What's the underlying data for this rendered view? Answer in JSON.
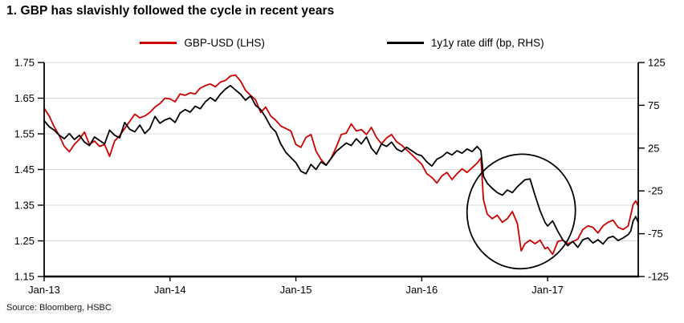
{
  "page": {
    "source": "Source: Bloomberg, HSBC"
  },
  "chart_data": {
    "type": "line",
    "title": "1. GBP has slavishly followed the cycle in recent years",
    "grid": "horizontal-light-gray",
    "grid_color": "#d9d9d9",
    "legend_position": "top-center",
    "legend": [
      {
        "id": "gbp-usd",
        "label": "GBP-USD (LHS)",
        "color": "#cc0000"
      },
      {
        "id": "rate-diff",
        "label": "1y1y rate diff (bp, RHS)",
        "color": "#000000"
      }
    ],
    "x_axis": {
      "range": [
        2013.0,
        2017.72
      ],
      "ticks": [
        {
          "value": 2013,
          "label": "Jan-13"
        },
        {
          "value": 2014,
          "label": "Jan-14"
        },
        {
          "value": 2015,
          "label": "Jan-15"
        },
        {
          "value": 2016,
          "label": "Jan-16"
        },
        {
          "value": 2017,
          "label": "Jan-17"
        }
      ]
    },
    "left_axis": {
      "series": "GBP-USD",
      "range": [
        1.15,
        1.75
      ],
      "ticks": [
        "1.75",
        "1.65",
        "1.55",
        "1.45",
        "1.35",
        "1.25",
        "1.15"
      ]
    },
    "right_axis": {
      "series": "1y1y rate diff (bp)",
      "range": [
        -125,
        125
      ],
      "ticks": [
        "125",
        "75",
        "25",
        "-25",
        "-75",
        "-125"
      ]
    },
    "x": [
      2013.0,
      2013.04,
      2013.08,
      2013.12,
      2013.16,
      2013.2,
      2013.24,
      2013.28,
      2013.32,
      2013.36,
      2013.4,
      2013.44,
      2013.48,
      2013.52,
      2013.56,
      2013.6,
      2013.64,
      2013.68,
      2013.72,
      2013.76,
      2013.8,
      2013.84,
      2013.88,
      2013.92,
      2013.96,
      2014.0,
      2014.04,
      2014.08,
      2014.12,
      2014.16,
      2014.2,
      2014.24,
      2014.28,
      2014.32,
      2014.36,
      2014.4,
      2014.44,
      2014.48,
      2014.52,
      2014.56,
      2014.6,
      2014.64,
      2014.68,
      2014.72,
      2014.76,
      2014.8,
      2014.84,
      2014.88,
      2014.92,
      2014.96,
      2015.0,
      2015.04,
      2015.08,
      2015.12,
      2015.16,
      2015.2,
      2015.24,
      2015.28,
      2015.32,
      2015.36,
      2015.4,
      2015.44,
      2015.48,
      2015.52,
      2015.56,
      2015.6,
      2015.64,
      2015.68,
      2015.72,
      2015.76,
      2015.8,
      2015.84,
      2015.88,
      2015.92,
      2015.96,
      2016.0,
      2016.04,
      2016.08,
      2016.12,
      2016.16,
      2016.2,
      2016.24,
      2016.28,
      2016.32,
      2016.36,
      2016.4,
      2016.44,
      2016.47,
      2016.49,
      2016.52,
      2016.56,
      2016.6,
      2016.64,
      2016.68,
      2016.72,
      2016.76,
      2016.79,
      2016.82,
      2016.86,
      2016.9,
      2016.94,
      2016.98,
      2017.0,
      2017.04,
      2017.08,
      2017.12,
      2017.16,
      2017.2,
      2017.24,
      2017.28,
      2017.32,
      2017.36,
      2017.4,
      2017.44,
      2017.48,
      2017.52,
      2017.56,
      2017.6,
      2017.64,
      2017.66,
      2017.68,
      2017.7,
      2017.72
    ],
    "series": [
      {
        "id": "gbp-usd",
        "name": "GBP-USD (LHS)",
        "axis": "left",
        "color": "#cc0000",
        "values": [
          1.622,
          1.6,
          1.57,
          1.545,
          1.515,
          1.5,
          1.52,
          1.535,
          1.555,
          1.52,
          1.53,
          1.515,
          1.52,
          1.487,
          1.53,
          1.545,
          1.565,
          1.585,
          1.605,
          1.595,
          1.6,
          1.61,
          1.625,
          1.635,
          1.65,
          1.648,
          1.64,
          1.662,
          1.658,
          1.665,
          1.662,
          1.678,
          1.685,
          1.69,
          1.682,
          1.695,
          1.7,
          1.712,
          1.715,
          1.698,
          1.672,
          1.658,
          1.645,
          1.61,
          1.625,
          1.6,
          1.588,
          1.572,
          1.565,
          1.558,
          1.52,
          1.512,
          1.54,
          1.548,
          1.502,
          1.478,
          1.462,
          1.482,
          1.512,
          1.548,
          1.552,
          1.578,
          1.558,
          1.562,
          1.548,
          1.568,
          1.54,
          1.522,
          1.538,
          1.548,
          1.528,
          1.518,
          1.505,
          1.492,
          1.478,
          1.465,
          1.438,
          1.428,
          1.412,
          1.432,
          1.442,
          1.422,
          1.438,
          1.452,
          1.442,
          1.455,
          1.468,
          1.482,
          1.365,
          1.325,
          1.312,
          1.322,
          1.302,
          1.312,
          1.332,
          1.298,
          1.222,
          1.242,
          1.252,
          1.242,
          1.252,
          1.228,
          1.232,
          1.212,
          1.248,
          1.252,
          1.242,
          1.248,
          1.255,
          1.282,
          1.292,
          1.288,
          1.272,
          1.292,
          1.302,
          1.308,
          1.288,
          1.282,
          1.292,
          1.322,
          1.352,
          1.362,
          1.348
        ]
      },
      {
        "id": "rate-diff",
        "name": "1y1y rate diff (bp, RHS)",
        "axis": "right",
        "color": "#000000",
        "values": [
          57,
          50,
          46,
          40,
          36,
          42,
          35,
          40,
          32,
          28,
          38,
          34,
          30,
          46,
          40,
          37,
          55,
          47,
          44,
          52,
          42,
          48,
          62,
          54,
          58,
          60,
          55,
          66,
          70,
          67,
          74,
          71,
          79,
          84,
          80,
          88,
          94,
          98,
          93,
          88,
          81,
          86,
          75,
          70,
          61,
          50,
          44,
          30,
          20,
          14,
          8,
          -2,
          -5,
          6,
          0,
          9,
          5,
          13,
          21,
          26,
          31,
          28,
          36,
          30,
          38,
          25,
          18,
          30,
          27,
          32,
          24,
          21,
          26,
          22,
          18,
          16,
          9,
          4,
          12,
          15,
          20,
          17,
          22,
          19,
          24,
          21,
          27,
          22,
          -8,
          -16,
          -22,
          -27,
          -30,
          -24,
          -27,
          -20,
          -16,
          -12,
          -11,
          -30,
          -48,
          -62,
          -66,
          -60,
          -72,
          -82,
          -89,
          -84,
          -91,
          -82,
          -80,
          -86,
          -82,
          -87,
          -80,
          -78,
          -83,
          -80,
          -76,
          -72,
          -60,
          -55,
          -62
        ]
      }
    ],
    "annotation": {
      "shape": "ellipse",
      "color": "#000000",
      "x_center": 2016.79,
      "y_center_rhs": -49,
      "rx_years": 0.43,
      "ry_rhs_bp": 67,
      "rotation_deg": 8
    }
  }
}
